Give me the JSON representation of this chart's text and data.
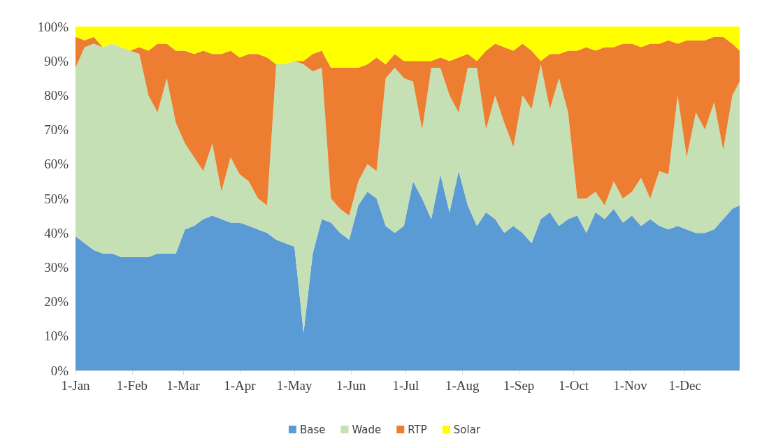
{
  "chart_data": {
    "type": "area",
    "stacked": true,
    "legend": "bottom",
    "x": [
      "--01-01",
      "--01-06",
      "--01-11",
      "--01-16",
      "--01-21",
      "--01-26",
      "--01-31",
      "--02-05",
      "--02-10",
      "--02-15",
      "--02-20",
      "--02-25",
      "--03-02",
      "--03-07",
      "--03-12",
      "--03-17",
      "--03-22",
      "--03-27",
      "--04-01",
      "--04-06",
      "--04-11",
      "--04-16",
      "--04-21",
      "--04-26",
      "--05-01",
      "--05-06",
      "--05-11",
      "--05-16",
      "--05-21",
      "--05-26",
      "--05-31",
      "--06-05",
      "--06-10",
      "--06-15",
      "--06-20",
      "--06-25",
      "--06-30",
      "--07-05",
      "--07-10",
      "--07-15",
      "--07-20",
      "--07-25",
      "--07-30",
      "--08-04",
      "--08-09",
      "--08-14",
      "--08-19",
      "--08-24",
      "--08-29",
      "--09-03",
      "--09-08",
      "--09-13",
      "--09-18",
      "--09-23",
      "--09-28",
      "--10-03",
      "--10-08",
      "--10-13",
      "--10-18",
      "--10-23",
      "--10-28",
      "--11-02",
      "--11-07",
      "--11-12",
      "--11-17",
      "--11-22",
      "--11-27",
      "--12-02",
      "--12-07",
      "--12-12",
      "--12-17",
      "--12-22",
      "--12-27",
      "--12-31"
    ],
    "series": [
      {
        "name": "Base",
        "color": "#5b9bd5",
        "values": [
          39,
          37,
          35,
          34,
          34,
          33,
          33,
          33,
          33,
          34,
          34,
          34,
          41,
          42,
          44,
          45,
          44,
          43,
          43,
          42,
          41,
          40,
          38,
          37,
          36,
          11,
          34,
          44,
          43,
          40,
          38,
          48,
          52,
          50,
          42,
          40,
          42,
          55,
          50,
          44,
          57,
          46,
          58,
          48,
          42,
          46,
          44,
          40,
          42,
          40,
          37,
          44,
          46,
          42,
          44,
          45,
          40,
          46,
          44,
          47,
          43,
          45,
          42,
          44,
          42,
          41,
          42,
          41,
          40,
          40,
          41,
          44,
          47,
          48
        ]
      },
      {
        "name": "Wade",
        "color": "#c5e0b4",
        "values": [
          49,
          57,
          60,
          60,
          61,
          61,
          60,
          59,
          47,
          41,
          51,
          38,
          25,
          20,
          14,
          21,
          8,
          19,
          14,
          13,
          9,
          8,
          51,
          52,
          54,
          78,
          53,
          44,
          7,
          7,
          7,
          7,
          8,
          8,
          43,
          48,
          43,
          29,
          20,
          44,
          31,
          34,
          17,
          40,
          46,
          24,
          36,
          32,
          23,
          40,
          39,
          45,
          30,
          43,
          31,
          5,
          10,
          6,
          4,
          8,
          7,
          7,
          14,
          6,
          16,
          16,
          38,
          21,
          35,
          30,
          37,
          20,
          33,
          36
        ]
      },
      {
        "name": "RTP",
        "color": "#ed7d31",
        "values": [
          9,
          2,
          2,
          0,
          0,
          0,
          0,
          2,
          13,
          20,
          10,
          21,
          27,
          30,
          35,
          26,
          40,
          31,
          34,
          37,
          42,
          43,
          0,
          0,
          0,
          1,
          5,
          5,
          38,
          41,
          43,
          33,
          29,
          33,
          4,
          4,
          5,
          6,
          20,
          2,
          3,
          10,
          16,
          4,
          2,
          23,
          15,
          22,
          28,
          15,
          17,
          1,
          16,
          7,
          18,
          43,
          44,
          41,
          46,
          39,
          45,
          43,
          38,
          45,
          37,
          39,
          15,
          34,
          21,
          26,
          19,
          33,
          15,
          9
        ]
      },
      {
        "name": "Solar",
        "color": "#ffff00",
        "values": [
          3,
          4,
          3,
          6,
          5,
          6,
          7,
          6,
          7,
          5,
          5,
          7,
          7,
          8,
          7,
          8,
          8,
          7,
          9,
          8,
          8,
          9,
          11,
          11,
          10,
          10,
          8,
          7,
          12,
          12,
          12,
          12,
          11,
          9,
          11,
          8,
          10,
          10,
          10,
          10,
          9,
          10,
          9,
          8,
          10,
          7,
          5,
          6,
          7,
          5,
          7,
          10,
          8,
          8,
          7,
          7,
          6,
          7,
          6,
          6,
          5,
          5,
          6,
          5,
          5,
          4,
          5,
          4,
          4,
          4,
          3,
          3,
          5,
          7
        ]
      }
    ],
    "xlim": [
      "--01-01",
      "--12-31"
    ],
    "xticks": [
      {
        "value": "--01-01",
        "label": "1-Jan"
      },
      {
        "value": "--02-01",
        "label": "1-Feb"
      },
      {
        "value": "--03-01",
        "label": "1-Mar"
      },
      {
        "value": "--04-01",
        "label": "1-Apr"
      },
      {
        "value": "--05-01",
        "label": "1-May"
      },
      {
        "value": "--06-01",
        "label": "1-Jun"
      },
      {
        "value": "--07-01",
        "label": "1-Jul"
      },
      {
        "value": "--08-01",
        "label": "1-Aug"
      },
      {
        "value": "--09-01",
        "label": "1-Sep"
      },
      {
        "value": "--10-01",
        "label": "1-Oct"
      },
      {
        "value": "--11-01",
        "label": "1-Nov"
      },
      {
        "value": "--12-01",
        "label": "1-Dec"
      }
    ],
    "ylim": [
      0,
      100
    ],
    "yticks": [
      {
        "value": 0,
        "label": "0%"
      },
      {
        "value": 10,
        "label": "10%"
      },
      {
        "value": 20,
        "label": "20%"
      },
      {
        "value": 30,
        "label": "30%"
      },
      {
        "value": 40,
        "label": "40%"
      },
      {
        "value": 50,
        "label": "50%"
      },
      {
        "value": 60,
        "label": "60%"
      },
      {
        "value": 70,
        "label": "70%"
      },
      {
        "value": 80,
        "label": "80%"
      },
      {
        "value": 90,
        "label": "90%"
      },
      {
        "value": 100,
        "label": "100%"
      }
    ]
  }
}
